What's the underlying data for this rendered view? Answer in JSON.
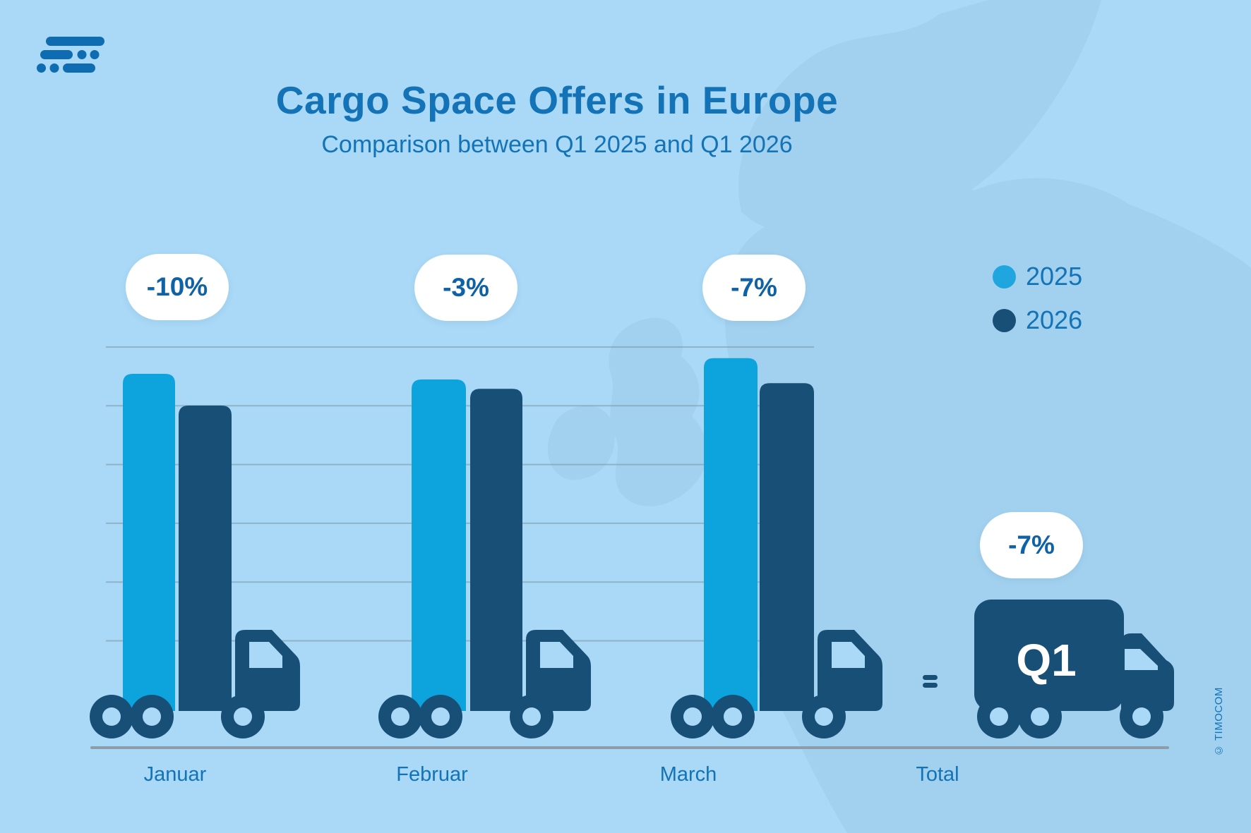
{
  "brand": {
    "logo": "timocom-logo",
    "copyright": "© TIMOCOM"
  },
  "header": {
    "title": "Cargo Space Offers in Europe",
    "subtitle": "Comparison between Q1 2025 and Q1 2026"
  },
  "legend": [
    {
      "label": "2025",
      "color": "#1FA6DF"
    },
    {
      "label": "2026",
      "color": "#184F77"
    }
  ],
  "chart_data": {
    "type": "bar",
    "title": "Cargo Space Offers in Europe",
    "subtitle": "Comparison between Q1 2025 and Q1 2026",
    "categories": [
      "Januar",
      "Februar",
      "March"
    ],
    "series": [
      {
        "name": "2025",
        "color": "#0DA3DC",
        "values": [
          100,
          98.5,
          104.2
        ]
      },
      {
        "name": "2026",
        "color": "#184F77",
        "values": [
          91.5,
          96.0,
          97.5
        ]
      }
    ],
    "value_basis": "index, January 2025 = 100 (bar heights proportional, no numeric axis shown)",
    "percent_change_labels": [
      "-10%",
      "-3%",
      "-7%"
    ],
    "total": {
      "label": "Total",
      "badge": "-7%",
      "truck_text": "Q1",
      "equals_sign": "="
    },
    "xlabel": "",
    "ylabel": "",
    "grid": true,
    "gridline_count": 6,
    "legend_position": "top-right",
    "bar_style": "bars drawn as cargo trucks with cab and wheels"
  },
  "axis": {
    "labels": [
      "Januar",
      "Februar",
      "March",
      "Total"
    ]
  },
  "colors": {
    "background": "#A9D9F6",
    "map_silhouette": "#9CCBE9",
    "bar_2025": "#0DA3DC",
    "bar_2026": "#184F77",
    "text_blue": "#1473B6",
    "badge_text": "#0F62A6",
    "badge_bg": "#FFFFFF",
    "gridline": "#7C95A3",
    "baseline": "#8A9DA9",
    "truck_window": "#A9D9F6",
    "q1_text": "#FFFFFF"
  }
}
